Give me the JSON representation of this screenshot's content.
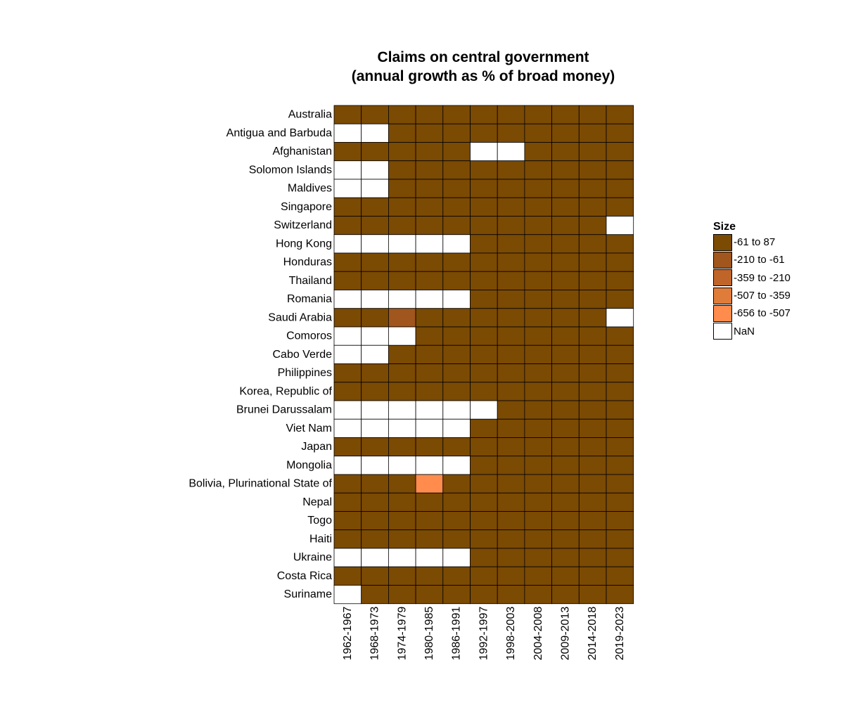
{
  "chart_data": {
    "type": "heatmap",
    "title": "Claims on central government",
    "subtitle": "(annual growth as % of broad money)",
    "columns": [
      "1962-1967",
      "1968-1973",
      "1974-1979",
      "1980-1985",
      "1986-1991",
      "1992-1997",
      "1998-2003",
      "2004-2008",
      "2009-2013",
      "2014-2018",
      "2019-2023"
    ],
    "rows": [
      "Australia",
      "Antigua and Barbuda",
      "Afghanistan",
      "Solomon Islands",
      "Maldives",
      "Singapore",
      "Switzerland",
      "Hong Kong",
      "Honduras",
      "Thailand",
      "Romania",
      "Saudi Arabia",
      "Comoros",
      "Cabo Verde",
      "Philippines",
      "Korea, Republic of",
      "Brunei Darussalam",
      "Viet Nam",
      "Japan",
      "Mongolia",
      "Bolivia, Plurinational State of",
      "Nepal",
      "Togo",
      "Haiti",
      "Ukraine",
      "Costa Rica",
      "Suriname"
    ],
    "legend": {
      "title": "Size",
      "placement": "right",
      "bins": [
        {
          "label": "-61 to 87",
          "color": "#7b4a03"
        },
        {
          "label": "-210 to -61",
          "color": "#a0561c"
        },
        {
          "label": "-359 to -210",
          "color": "#c0652a"
        },
        {
          "label": "-507 to -359",
          "color": "#e07c3a"
        },
        {
          "label": "-656 to -507",
          "color": "#ff8c4d"
        },
        {
          "label": "NaN",
          "color": "#ffffff"
        }
      ]
    },
    "cells_bin_index": [
      [
        0,
        0,
        0,
        0,
        0,
        0,
        0,
        0,
        0,
        0,
        0
      ],
      [
        5,
        5,
        0,
        0,
        0,
        0,
        0,
        0,
        0,
        0,
        0
      ],
      [
        0,
        0,
        0,
        0,
        0,
        5,
        5,
        0,
        0,
        0,
        0
      ],
      [
        5,
        5,
        0,
        0,
        0,
        0,
        0,
        0,
        0,
        0,
        0
      ],
      [
        5,
        5,
        0,
        0,
        0,
        0,
        0,
        0,
        0,
        0,
        0
      ],
      [
        0,
        0,
        0,
        0,
        0,
        0,
        0,
        0,
        0,
        0,
        0
      ],
      [
        0,
        0,
        0,
        0,
        0,
        0,
        0,
        0,
        0,
        0,
        5
      ],
      [
        5,
        5,
        5,
        5,
        5,
        0,
        0,
        0,
        0,
        0,
        0
      ],
      [
        0,
        0,
        0,
        0,
        0,
        0,
        0,
        0,
        0,
        0,
        0
      ],
      [
        0,
        0,
        0,
        0,
        0,
        0,
        0,
        0,
        0,
        0,
        0
      ],
      [
        5,
        5,
        5,
        5,
        5,
        0,
        0,
        0,
        0,
        0,
        0
      ],
      [
        0,
        0,
        1,
        0,
        0,
        0,
        0,
        0,
        0,
        0,
        5
      ],
      [
        5,
        5,
        5,
        0,
        0,
        0,
        0,
        0,
        0,
        0,
        0
      ],
      [
        5,
        5,
        0,
        0,
        0,
        0,
        0,
        0,
        0,
        0,
        0
      ],
      [
        0,
        0,
        0,
        0,
        0,
        0,
        0,
        0,
        0,
        0,
        0
      ],
      [
        0,
        0,
        0,
        0,
        0,
        0,
        0,
        0,
        0,
        0,
        0
      ],
      [
        5,
        5,
        5,
        5,
        5,
        5,
        0,
        0,
        0,
        0,
        0
      ],
      [
        5,
        5,
        5,
        5,
        5,
        0,
        0,
        0,
        0,
        0,
        0
      ],
      [
        0,
        0,
        0,
        0,
        0,
        0,
        0,
        0,
        0,
        0,
        0
      ],
      [
        5,
        5,
        5,
        5,
        5,
        0,
        0,
        0,
        0,
        0,
        0
      ],
      [
        0,
        0,
        0,
        4,
        0,
        0,
        0,
        0,
        0,
        0,
        0
      ],
      [
        0,
        0,
        0,
        0,
        0,
        0,
        0,
        0,
        0,
        0,
        0
      ],
      [
        0,
        0,
        0,
        0,
        0,
        0,
        0,
        0,
        0,
        0,
        0
      ],
      [
        0,
        0,
        0,
        0,
        0,
        0,
        0,
        0,
        0,
        0,
        0
      ],
      [
        5,
        5,
        5,
        5,
        5,
        0,
        0,
        0,
        0,
        0,
        0
      ],
      [
        0,
        0,
        0,
        0,
        0,
        0,
        0,
        0,
        0,
        0,
        0
      ],
      [
        5,
        0,
        0,
        0,
        0,
        0,
        0,
        0,
        0,
        0,
        0
      ]
    ]
  }
}
